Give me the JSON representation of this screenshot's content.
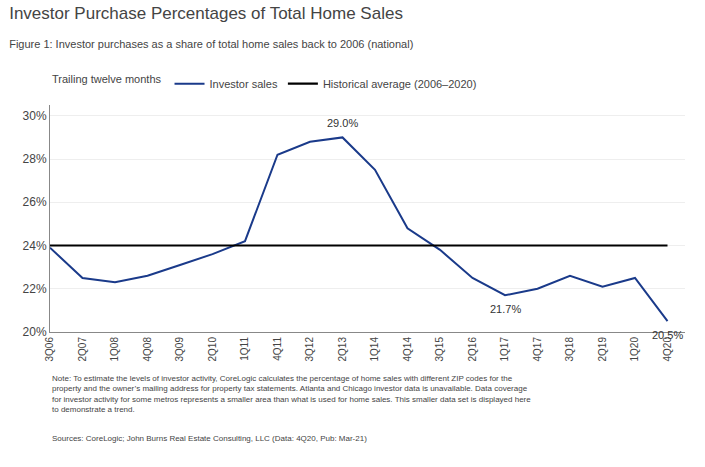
{
  "chart_data": {
    "type": "line",
    "title": "Investor Purchase Percentages of Total Home Sales",
    "subtitle": "Figure 1: Investor purchases as a share of total home sales back to 2006 (national)",
    "legend_title": "Trailing twelve months",
    "legend": "top",
    "categories": [
      "3Q06",
      "2Q07",
      "1Q08",
      "4Q08",
      "3Q09",
      "2Q10",
      "1Q11",
      "4Q11",
      "3Q12",
      "2Q13",
      "1Q14",
      "4Q14",
      "3Q15",
      "2Q16",
      "1Q17",
      "4Q17",
      "3Q18",
      "2Q19",
      "1Q20",
      "4Q20"
    ],
    "series": [
      {
        "name": "Investor sales",
        "color": "#1a3a8a",
        "values": [
          23.9,
          22.5,
          22.3,
          22.6,
          23.1,
          23.6,
          24.2,
          28.2,
          28.8,
          29.0,
          27.5,
          24.8,
          23.8,
          22.5,
          21.7,
          22.0,
          22.6,
          22.1,
          22.5,
          20.5
        ]
      }
    ],
    "reference_lines": [
      {
        "name": "Historical average (2006–2020)",
        "value": 24.0,
        "color": "#000000"
      }
    ],
    "ylim": [
      20.0,
      30.5
    ],
    "yticks": [
      {
        "value": 20,
        "label": "20%"
      },
      {
        "value": 22,
        "label": "22%"
      },
      {
        "value": 24,
        "label": "24%"
      },
      {
        "value": 26,
        "label": "26%"
      },
      {
        "value": 28,
        "label": "28%"
      },
      {
        "value": 30,
        "label": "30%"
      }
    ],
    "grid": true,
    "annotations": [
      {
        "category": "2Q13",
        "value": 29.0,
        "label": "29.0%"
      },
      {
        "category": "1Q17",
        "value": 21.7,
        "label": "21.7%"
      },
      {
        "category": "4Q20",
        "value": 20.5,
        "label": "20.5%"
      }
    ],
    "note": "Note: To estimate the levels of investor activity, CoreLogic calculates the percentage of home sales with different ZIP codes for the\nproperty and the owner’s mailing address for property tax statements. Atlanta and Chicago investor data is unavailable. Data coverage\nfor investor activity for some metros represents a smaller area than what is used for home sales. This smaller data set is displayed here\nto demonstrate a trend.",
    "source": "Sources: CoreLogic; John Burns Real Estate Consulting, LLC (Data: 4Q20, Pub: Mar-21)"
  }
}
